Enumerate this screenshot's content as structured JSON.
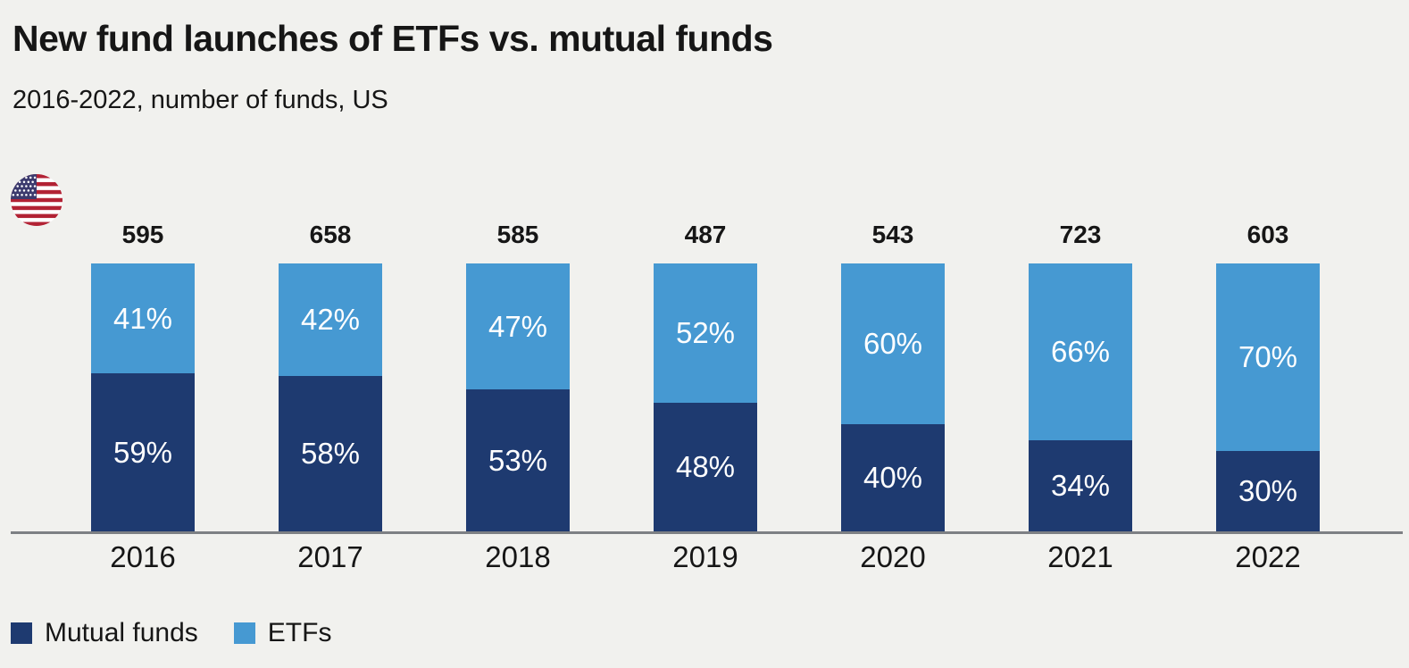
{
  "colors": {
    "background": "#f1f1ee",
    "mutual_funds": "#1e3a70",
    "etfs": "#4699d2",
    "text": "#161616",
    "bar_value_text": "#ffffff",
    "axis_line": "#7d8084",
    "flag_red": "#b22234",
    "flag_blue": "#3c3b6e",
    "flag_white": "#ffffff"
  },
  "icons": {
    "country_flag": "us-flag-icon"
  },
  "chart_data": {
    "type": "bar",
    "variant": "100-percent-stacked-column",
    "title": "New fund launches of ETFs vs. mutual funds",
    "subtitle": "2016-2022, number of funds, US",
    "categories": [
      "2016",
      "2017",
      "2018",
      "2019",
      "2020",
      "2021",
      "2022"
    ],
    "totals": [
      595,
      658,
      585,
      487,
      543,
      723,
      603
    ],
    "series": [
      {
        "name": "Mutual funds",
        "position": "bottom",
        "color": "#1e3a70",
        "values_pct": [
          59,
          58,
          53,
          48,
          40,
          34,
          30
        ]
      },
      {
        "name": "ETFs",
        "position": "top",
        "color": "#4699d2",
        "values_pct": [
          41,
          42,
          47,
          52,
          60,
          66,
          70
        ]
      }
    ],
    "value_label_suffix": "%",
    "total_label_position": "above-bar",
    "ylim": [
      0,
      100
    ],
    "grid": false,
    "legend_position": "bottom-left"
  }
}
